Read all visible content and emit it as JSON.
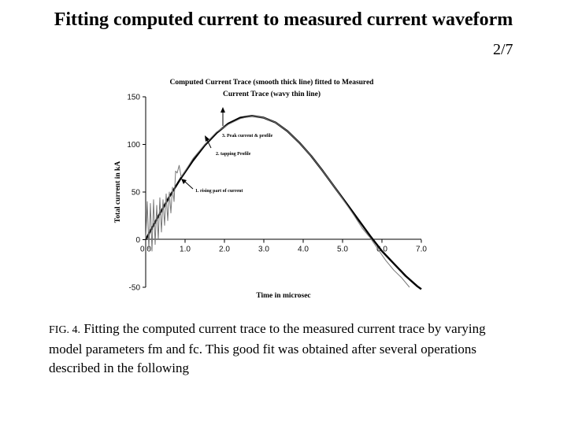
{
  "slide": {
    "title": "Fitting computed current to measured current waveform",
    "page": "2/7"
  },
  "caption": {
    "fig_label": "FIG. 4.",
    "text": "Fitting the computed current trace to the measured current trace by varying model parameters fm and fc. This good fit was obtained after several operations described in the following"
  },
  "chart_data": {
    "type": "line",
    "title_lines": [
      "Computed Current Trace (smooth thick line) fitted to Measured",
      "Current Trace (wavy thin line)"
    ],
    "xlabel": "Time in microsec",
    "ylabel": "Total current in kA",
    "xlim": [
      0,
      7
    ],
    "ylim": [
      -50,
      150
    ],
    "x_ticks": [
      "0.0",
      "1.0",
      "2.0",
      "3.0",
      "4.0",
      "5.0",
      "6.0",
      "7.0"
    ],
    "y_ticks": [
      "-50",
      "0",
      "50",
      "100",
      "150"
    ],
    "grid": false,
    "annotations": [
      {
        "text": "3. Peak current & profile",
        "target": [
          2.65,
          132
        ]
      },
      {
        "text": "2. tapping Profile",
        "target": [
          1.6,
          106
        ]
      },
      {
        "text": "1. rising part of current",
        "target": [
          0.8,
          68
        ]
      }
    ],
    "series": [
      {
        "style": "smooth thick line",
        "color": "#000000",
        "x": [
          0,
          0.3,
          0.6,
          0.9,
          1.2,
          1.5,
          1.8,
          2.1,
          2.4,
          2.7,
          3.0,
          3.3,
          3.6,
          3.9,
          4.2,
          4.5,
          4.8,
          5.1,
          5.4,
          5.7,
          6.0,
          6.3,
          6.6,
          6.9,
          7.0
        ],
        "y": [
          0,
          23,
          45,
          65,
          83,
          99,
          112,
          122,
          128,
          130,
          128,
          123,
          114,
          102,
          88,
          72,
          55,
          38,
          21,
          4,
          -12,
          -25,
          -38,
          -49,
          -52
        ]
      },
      {
        "style": "wavy thin line",
        "color": "#777777",
        "x": [
          0,
          0.04,
          0.08,
          0.12,
          0.16,
          0.2,
          0.24,
          0.28,
          0.32,
          0.36,
          0.4,
          0.44,
          0.48,
          0.52,
          0.56,
          0.6,
          0.64,
          0.68,
          0.72,
          0.76,
          0.8,
          0.85,
          0.9,
          1.0,
          1.2,
          1.5,
          1.8,
          2.1,
          2.4,
          2.7,
          3.0,
          3.3,
          3.6,
          3.9,
          4.2,
          4.5,
          4.8,
          5.1,
          5.3,
          5.5,
          5.7,
          5.9,
          6.1,
          6.3,
          6.5,
          6.7
        ],
        "y": [
          0,
          40,
          -10,
          38,
          -12,
          42,
          -5,
          36,
          0,
          44,
          8,
          42,
          15,
          48,
          20,
          50,
          28,
          55,
          40,
          72,
          70,
          78,
          66,
          72,
          85,
          100,
          113,
          121,
          127,
          130,
          128,
          123,
          114,
          102,
          88,
          72,
          55,
          37,
          25,
          12,
          2,
          -10,
          -22,
          -32,
          -40,
          -50
        ]
      }
    ]
  }
}
